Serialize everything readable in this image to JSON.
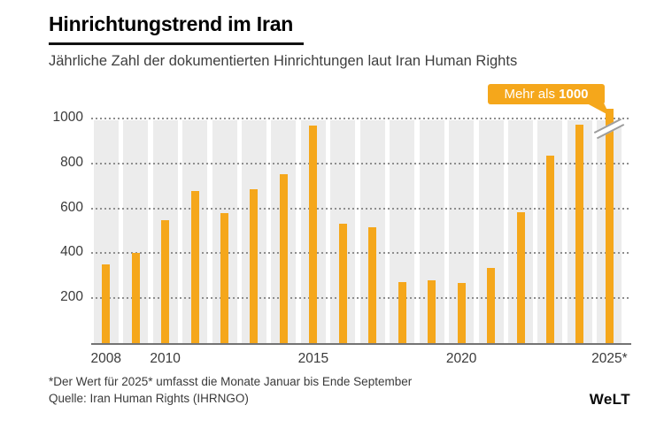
{
  "header": {
    "title": "Hinrichtungstrend im Iran",
    "subtitle": "Jährliche Zahl der dokumentierten Hinrichtungen laut Iran Human Rights"
  },
  "annotation_badge": {
    "text_regular": "Mehr als",
    "text_bold": "1000"
  },
  "chart_data": {
    "type": "bar",
    "title": "Hinrichtungstrend im Iran",
    "subtitle": "Jährliche Zahl der dokumentierten Hinrichtungen laut Iran Human Rights",
    "categories": [
      "2008",
      "2009",
      "2010",
      "2011",
      "2012",
      "2013",
      "2014",
      "2015",
      "2016",
      "2017",
      "2018",
      "2019",
      "2020",
      "2021",
      "2022",
      "2023",
      "2024",
      "2025"
    ],
    "values": [
      350,
      402,
      546,
      676,
      580,
      687,
      753,
      969,
      530,
      517,
      273,
      280,
      267,
      333,
      582,
      834,
      975,
      1000
    ],
    "last_bar": {
      "exceeds_axis": true,
      "label": "Mehr als 1000"
    },
    "y_ticks": [
      200,
      400,
      600,
      800,
      1000
    ],
    "ylim": [
      0,
      1000
    ],
    "x_tick_labels": [
      {
        "label": "2008",
        "index": 0
      },
      {
        "label": "2010",
        "index": 2
      },
      {
        "label": "2015",
        "index": 7
      },
      {
        "label": "2020",
        "index": 12
      },
      {
        "label": "2025*",
        "index": 17
      }
    ],
    "grid": "dotted-horizontal",
    "legend": "none",
    "colors": {
      "bar": "#F5A71B",
      "badge": "#F5A71B",
      "stripe": "#ECECEC",
      "grid_dots": "#8E8E8E",
      "axis_line": "#747474",
      "break_lines": "#9D9D9D"
    }
  },
  "footer": {
    "footnote": "*Der Wert für 2025* umfasst die Monate Januar bis Ende September",
    "source": "Quelle: Iran Human Rights (IHRNGO)",
    "logo": "WeLT"
  }
}
